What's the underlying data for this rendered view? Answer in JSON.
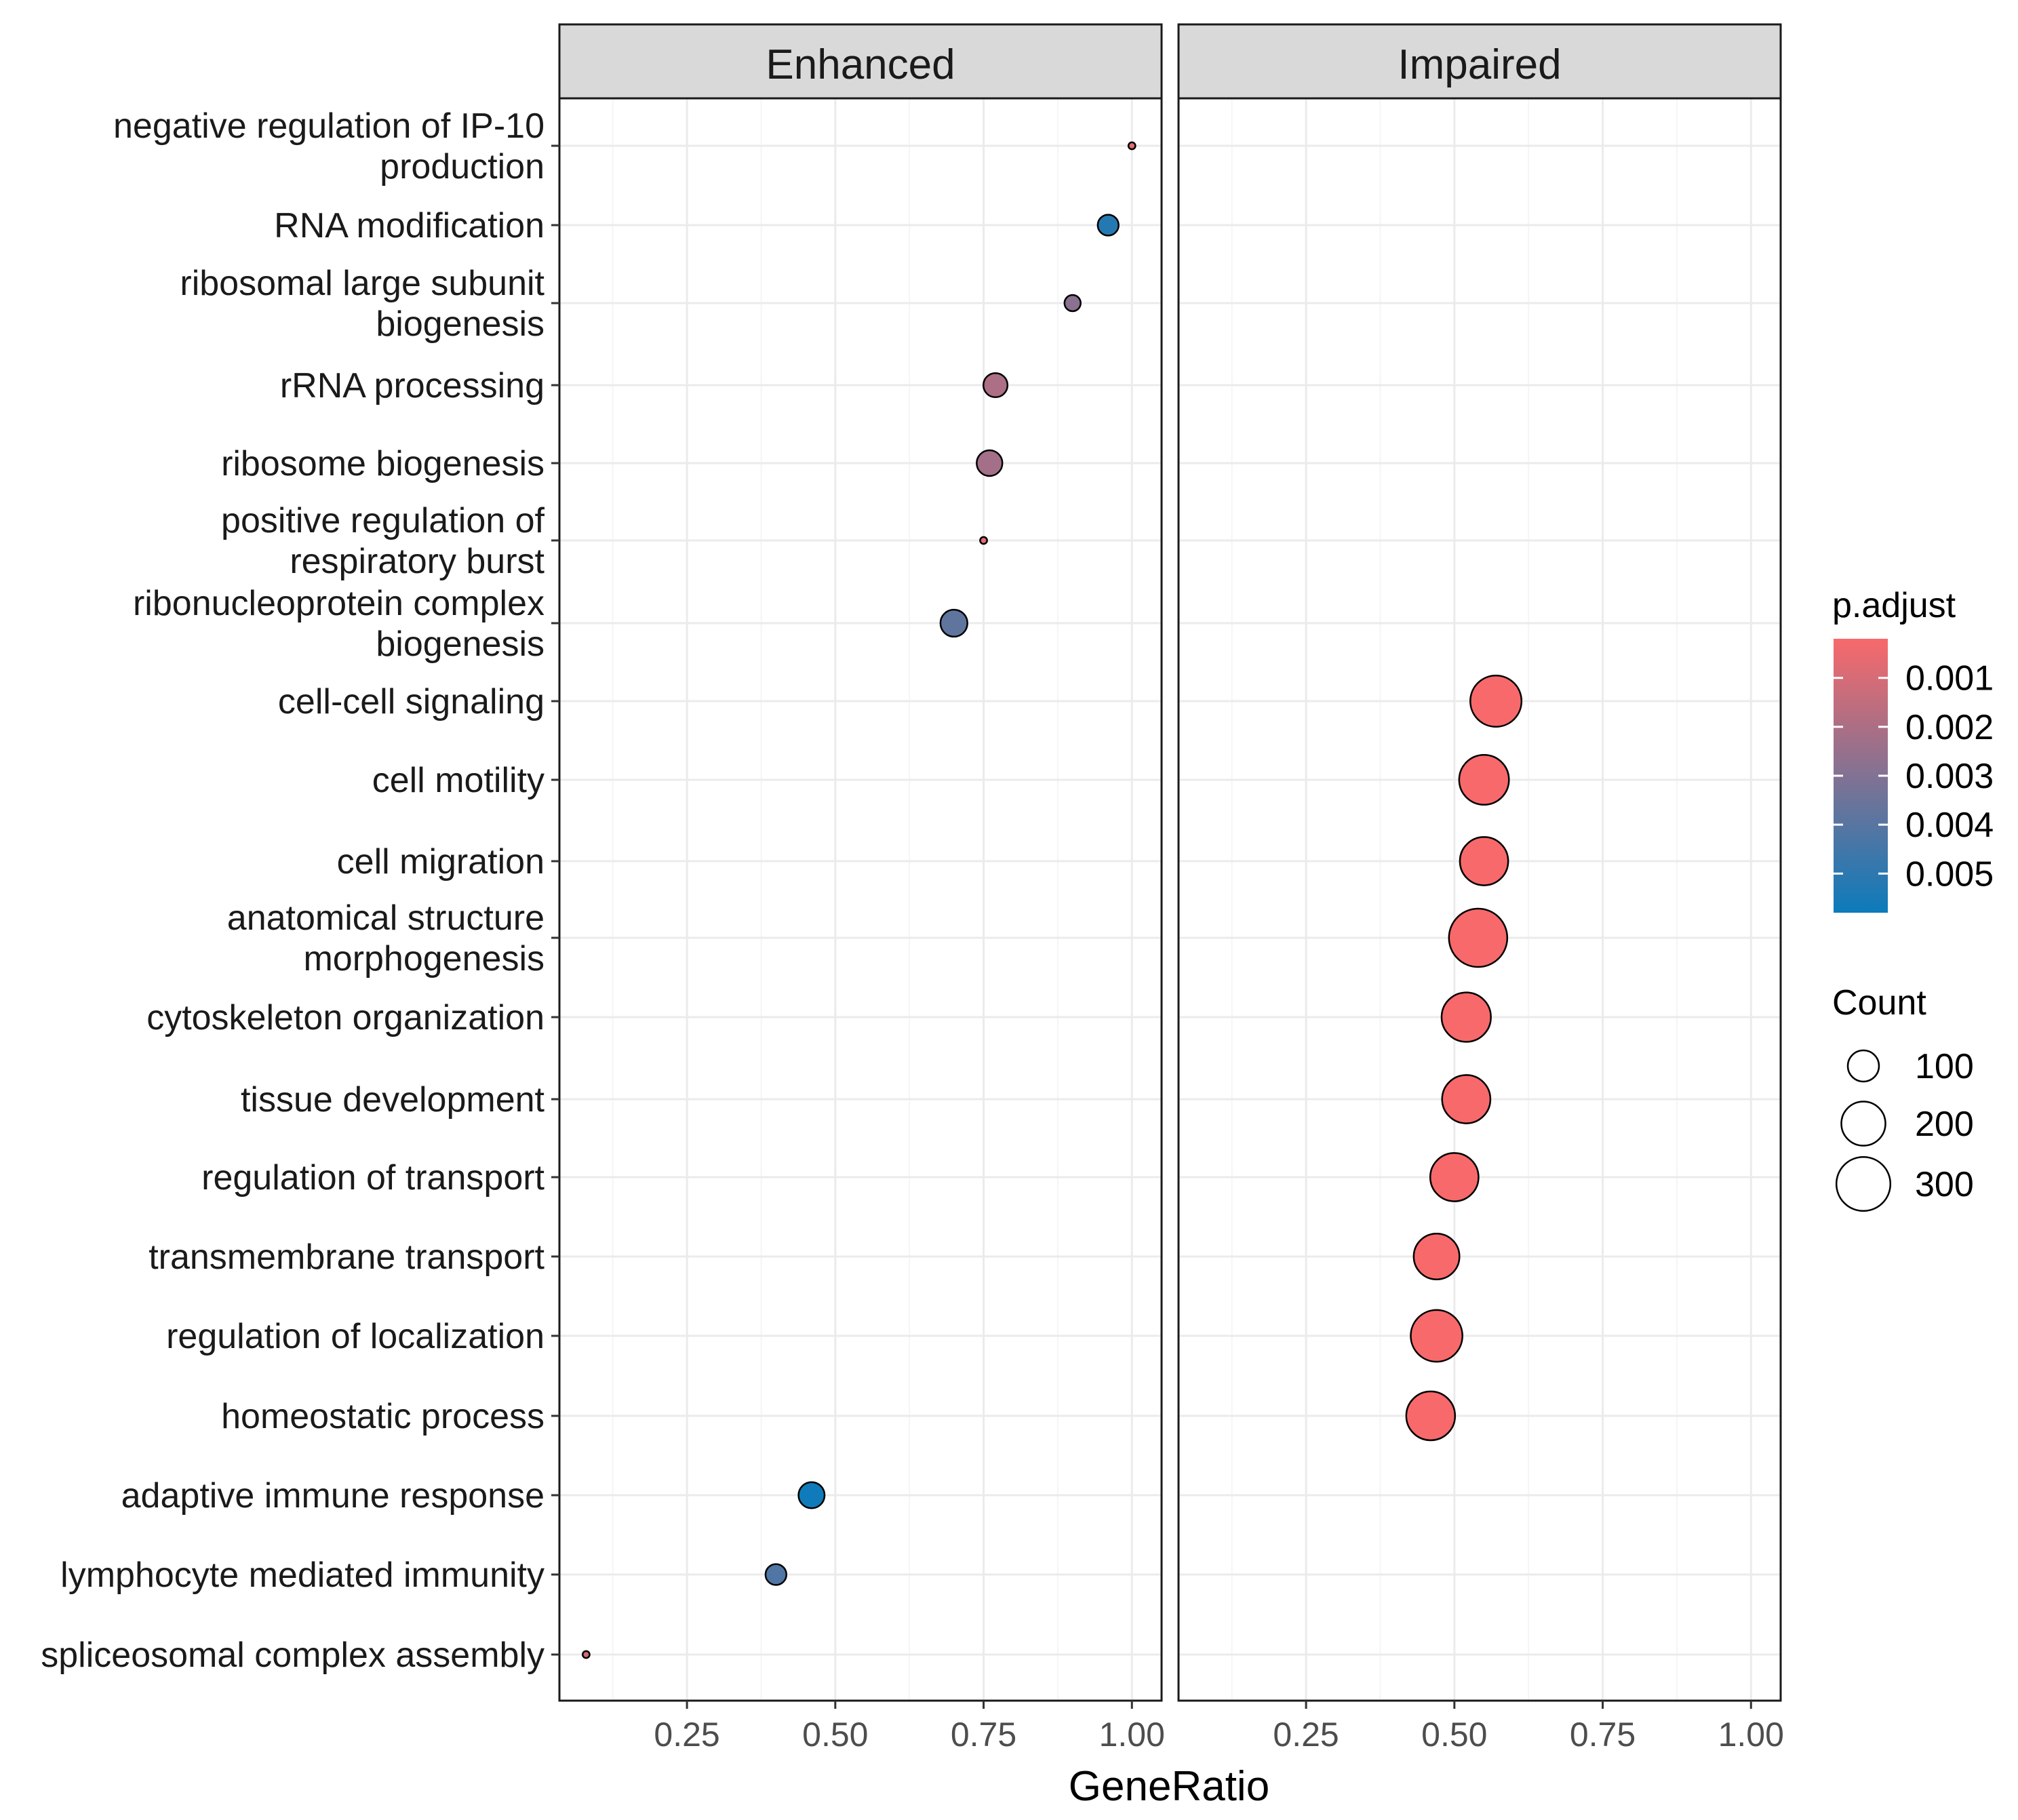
{
  "chart_data": {
    "type": "scatter",
    "xlabel": "GeneRatio",
    "xlim": [
      0.035,
      1.05
    ],
    "x_ticks": [
      0.25,
      0.5,
      0.75,
      1.0
    ],
    "x_tick_labels": [
      "0.25",
      "0.50",
      "0.75",
      "1.00"
    ],
    "panels": [
      "Enhanced",
      "Impaired"
    ],
    "grid": true,
    "legend_position": "right",
    "categories": [
      "negative regulation of IP-10 production",
      "RNA modification",
      "ribosomal large subunit biogenesis",
      "rRNA processing",
      "ribosome biogenesis",
      "positive regulation of respiratory burst",
      "ribonucleoprotein complex biogenesis",
      "cell-cell signaling",
      "cell motility",
      "cell migration",
      "anatomical structure morphogenesis",
      "cytoskeleton organization",
      "tissue development",
      "regulation of transport",
      "transmembrane transport",
      "regulation of localization",
      "homeostatic process",
      "adaptive immune response",
      "lymphocyte mediated immunity",
      "spliceosomal complex assembly"
    ],
    "category_label_lines": [
      [
        "negative regulation of IP-10",
        "production"
      ],
      [
        "RNA modification"
      ],
      [
        "ribosomal large subunit",
        "biogenesis"
      ],
      [
        "rRNA processing"
      ],
      [
        "ribosome biogenesis"
      ],
      [
        "positive regulation of",
        "respiratory burst"
      ],
      [
        "ribonucleoprotein complex",
        "biogenesis"
      ],
      [
        "cell-cell signaling"
      ],
      [
        "cell motility"
      ],
      [
        "cell migration"
      ],
      [
        "anatomical structure",
        "morphogenesis"
      ],
      [
        "cytoskeleton organization"
      ],
      [
        "tissue development"
      ],
      [
        "regulation of transport"
      ],
      [
        "transmembrane transport"
      ],
      [
        "regulation of localization"
      ],
      [
        "homeostatic process"
      ],
      [
        "adaptive immune response"
      ],
      [
        "lymphocyte mediated immunity"
      ],
      [
        "spliceosomal complex assembly"
      ]
    ],
    "points": [
      {
        "panel": "Enhanced",
        "category": "negative regulation of IP-10 production",
        "gene_ratio": 1.0,
        "count": 5,
        "p_adjust": 0.0006
      },
      {
        "panel": "Enhanced",
        "category": "RNA modification",
        "gene_ratio": 0.96,
        "count": 45,
        "p_adjust": 0.0052
      },
      {
        "panel": "Enhanced",
        "category": "ribosomal large subunit biogenesis",
        "gene_ratio": 0.9,
        "count": 27,
        "p_adjust": 0.0028
      },
      {
        "panel": "Enhanced",
        "category": "rRNA processing",
        "gene_ratio": 0.77,
        "count": 60,
        "p_adjust": 0.002
      },
      {
        "panel": "Enhanced",
        "category": "ribosome biogenesis",
        "gene_ratio": 0.76,
        "count": 68,
        "p_adjust": 0.0022
      },
      {
        "panel": "Enhanced",
        "category": "positive regulation of respiratory burst",
        "gene_ratio": 0.75,
        "count": 5,
        "p_adjust": 0.0006
      },
      {
        "panel": "Enhanced",
        "category": "ribonucleoprotein complex biogenesis",
        "gene_ratio": 0.7,
        "count": 75,
        "p_adjust": 0.0038
      },
      {
        "panel": "Enhanced",
        "category": "adaptive immune response",
        "gene_ratio": 0.46,
        "count": 70,
        "p_adjust": 0.0057
      },
      {
        "panel": "Enhanced",
        "category": "lymphocyte mediated immunity",
        "gene_ratio": 0.4,
        "count": 45,
        "p_adjust": 0.0042
      },
      {
        "panel": "Enhanced",
        "category": "spliceosomal complex assembly",
        "gene_ratio": 0.08,
        "count": 5,
        "p_adjust": 0.0012
      },
      {
        "panel": "Impaired",
        "category": "cell-cell signaling",
        "gene_ratio": 0.57,
        "count": 270,
        "p_adjust": 0.0002
      },
      {
        "panel": "Impaired",
        "category": "cell motility",
        "gene_ratio": 0.55,
        "count": 255,
        "p_adjust": 0.0002
      },
      {
        "panel": "Impaired",
        "category": "cell migration",
        "gene_ratio": 0.55,
        "count": 240,
        "p_adjust": 0.0002
      },
      {
        "panel": "Impaired",
        "category": "anatomical structure morphogenesis",
        "gene_ratio": 0.54,
        "count": 350,
        "p_adjust": 0.0002
      },
      {
        "panel": "Impaired",
        "category": "cytoskeleton organization",
        "gene_ratio": 0.52,
        "count": 250,
        "p_adjust": 0.0002
      },
      {
        "panel": "Impaired",
        "category": "tissue development",
        "gene_ratio": 0.52,
        "count": 240,
        "p_adjust": 0.0002
      },
      {
        "panel": "Impaired",
        "category": "regulation of transport",
        "gene_ratio": 0.5,
        "count": 240,
        "p_adjust": 0.0002
      },
      {
        "panel": "Impaired",
        "category": "transmembrane transport",
        "gene_ratio": 0.47,
        "count": 215,
        "p_adjust": 0.0002
      },
      {
        "panel": "Impaired",
        "category": "regulation of localization",
        "gene_ratio": 0.47,
        "count": 275,
        "p_adjust": 0.0002
      },
      {
        "panel": "Impaired",
        "category": "homeostatic process",
        "gene_ratio": 0.46,
        "count": 245,
        "p_adjust": 0.0002
      }
    ],
    "color_legend": {
      "title": "p.adjust",
      "domain": [
        0.0002,
        0.0058
      ],
      "ticks": [
        0.001,
        0.002,
        0.003,
        0.004,
        0.005
      ],
      "tick_labels": [
        "0.001",
        "0.002",
        "0.003",
        "0.004",
        "0.005"
      ],
      "low_color": "#F8696B",
      "high_color": "#0C7BBB"
    },
    "size_legend": {
      "title": "Count",
      "values": [
        100,
        200,
        300
      ],
      "labels": [
        "100",
        "200",
        "300"
      ]
    }
  },
  "colors": {
    "panel_border": "#1a1a1a",
    "strip_fill": "#D9D9D9",
    "grid_major": "#EBEBEB",
    "grid_minor": "#F5F5F5",
    "point_stroke": "#000000"
  }
}
